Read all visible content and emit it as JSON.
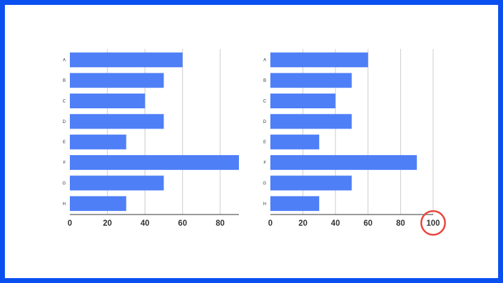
{
  "colors": {
    "frame": "#0a4ff0",
    "bar": "#4f7ff7",
    "grid": "#cccccc",
    "axis": "#333333",
    "highlight": "#e8453c"
  },
  "chart_data": [
    {
      "type": "bar",
      "orientation": "horizontal",
      "categories": [
        "A",
        "B",
        "C",
        "D",
        "E",
        "F",
        "G",
        "H"
      ],
      "values": [
        60,
        50,
        40,
        50,
        30,
        90,
        50,
        30
      ],
      "xlim": [
        0,
        90
      ],
      "xticks": [
        "0",
        "20",
        "40",
        "60",
        "80"
      ],
      "grid": true,
      "legend": "none"
    },
    {
      "type": "bar",
      "orientation": "horizontal",
      "categories": [
        "A",
        "B",
        "C",
        "D",
        "E",
        "F",
        "G",
        "H"
      ],
      "values": [
        60,
        50,
        40,
        50,
        30,
        90,
        50,
        30
      ],
      "xlim": [
        0,
        100
      ],
      "xticks": [
        "0",
        "20",
        "40",
        "60",
        "80",
        "100"
      ],
      "grid": true,
      "legend": "none",
      "annotation": {
        "type": "circle",
        "target_tick": "100"
      }
    }
  ]
}
